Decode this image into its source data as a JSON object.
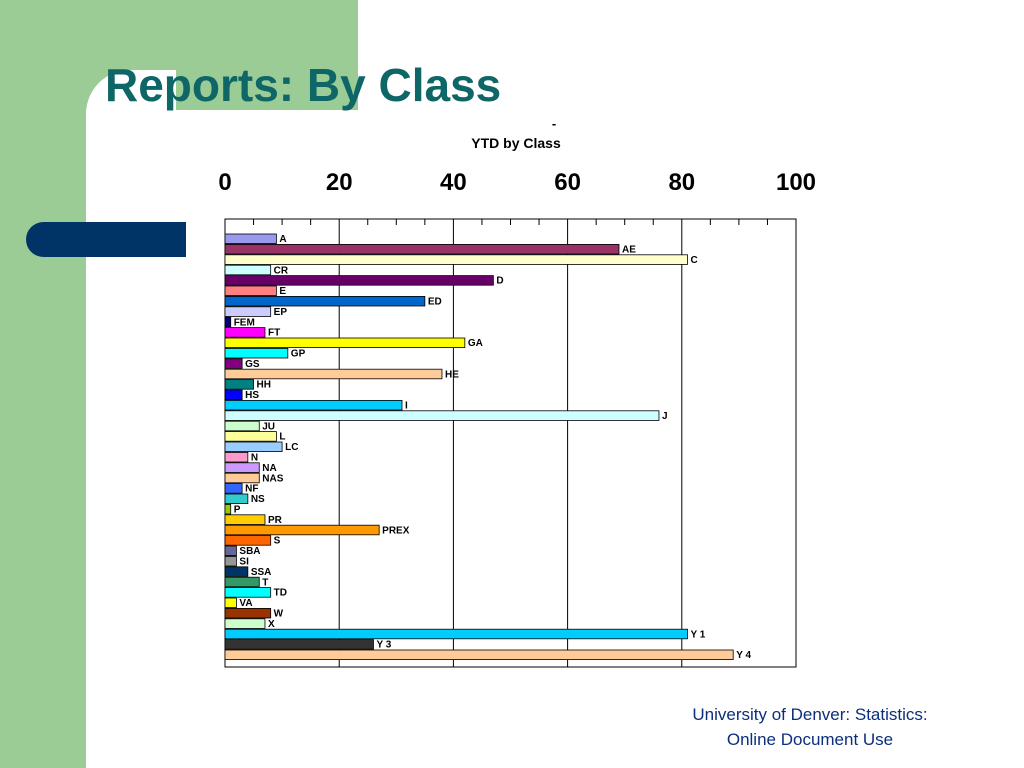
{
  "slide": {
    "title": "Reports: By Class",
    "footer_line1": "University of Denver: Statistics:",
    "footer_line2": "Online Document Use"
  },
  "chart_data": {
    "type": "bar",
    "orientation": "horizontal",
    "title_mark": "-",
    "title": "YTD by Class",
    "xlim": [
      0,
      100
    ],
    "xticks": [
      0,
      20,
      40,
      60,
      80,
      100
    ],
    "grid": true,
    "legend": "none",
    "categories": [
      "A",
      "AE",
      "C",
      "CR",
      "D",
      "E",
      "ED",
      "EP",
      "FEM",
      "FT",
      "GA",
      "GP",
      "GS",
      "HE",
      "HH",
      "HS",
      "I",
      "J",
      "JU",
      "L",
      "LC",
      "N",
      "NA",
      "NAS",
      "NF",
      "NS",
      "P",
      "PR",
      "PREX",
      "S",
      "SBA",
      "SI",
      "SSA",
      "T",
      "TD",
      "VA",
      "W",
      "X",
      "Y 1",
      "Y 3",
      "Y 4"
    ],
    "values": [
      9,
      69,
      81,
      8,
      47,
      9,
      35,
      8,
      1,
      7,
      42,
      11,
      3,
      38,
      5,
      3,
      31,
      76,
      6,
      9,
      10,
      4,
      6,
      6,
      3,
      4,
      1,
      7,
      27,
      8,
      2,
      2,
      4,
      6,
      8,
      2,
      8,
      7,
      81,
      26,
      89
    ],
    "colors": [
      "#9999ee",
      "#993366",
      "#ffffcc",
      "#ccffff",
      "#660066",
      "#ff8080",
      "#0066cc",
      "#ccccff",
      "#000080",
      "#ff00ff",
      "#ffff00",
      "#00ffff",
      "#800080",
      "#ffcc99",
      "#008080",
      "#0000ff",
      "#00ccff",
      "#ccffff",
      "#ccffcc",
      "#ffff99",
      "#99ccff",
      "#ff99cc",
      "#cc99ff",
      "#ffcc99",
      "#3366ff",
      "#33cccc",
      "#99cc00",
      "#ffcc00",
      "#ff9900",
      "#ff6600",
      "#666699",
      "#969696",
      "#003366",
      "#339966",
      "#00ffff",
      "#ffff00",
      "#993300",
      "#ccffcc",
      "#00ccff",
      "#333333",
      "#ffcc99"
    ]
  }
}
